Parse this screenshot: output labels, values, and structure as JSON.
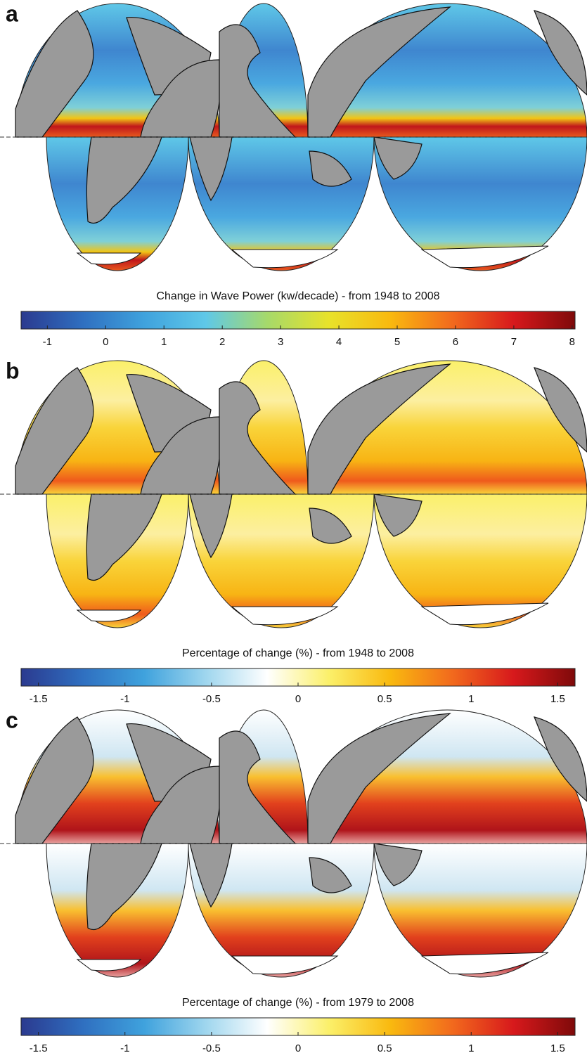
{
  "panels": [
    {
      "label": "a",
      "colorbar": {
        "title": "Change in Wave Power (kw/decade) - from 1948 to 2008",
        "range": [
          -1.45,
          8.05
        ],
        "ticks": [
          -1,
          0,
          1,
          2,
          3,
          4,
          5,
          6,
          7,
          8
        ],
        "colors": [
          "#2b3a8f",
          "#2f6fc0",
          "#3fa2dd",
          "#5fc8e8",
          "#a6d96a",
          "#e8e22a",
          "#f9b90f",
          "#f26a1d",
          "#d7191c",
          "#7f0a0a"
        ]
      }
    },
    {
      "label": "b",
      "colorbar": {
        "title": "Percentage of change (%) - from 1948 to 2008",
        "range": [
          -1.6,
          1.6
        ],
        "ticks": [
          -1.5,
          -1,
          -0.5,
          0,
          0.5,
          1,
          1.5
        ],
        "colors": [
          "#2b3a8f",
          "#2f6fc0",
          "#3fa2dd",
          "#9fd6ee",
          "#ffffff",
          "#fbf06a",
          "#f9b90f",
          "#f26a1d",
          "#d7191c",
          "#7f0a0a"
        ]
      }
    },
    {
      "label": "c",
      "colorbar": {
        "title": "Percentage of change (%) - from 1979 to 2008",
        "range": [
          -1.6,
          1.6
        ],
        "ticks": [
          -1.5,
          -1,
          -0.5,
          0,
          0.5,
          1,
          1.5
        ],
        "colors": [
          "#2b3a8f",
          "#2f6fc0",
          "#3fa2dd",
          "#9fd6ee",
          "#ffffff",
          "#fbf06a",
          "#f9b90f",
          "#f26a1d",
          "#d7191c",
          "#7f0a0a"
        ]
      }
    }
  ]
}
